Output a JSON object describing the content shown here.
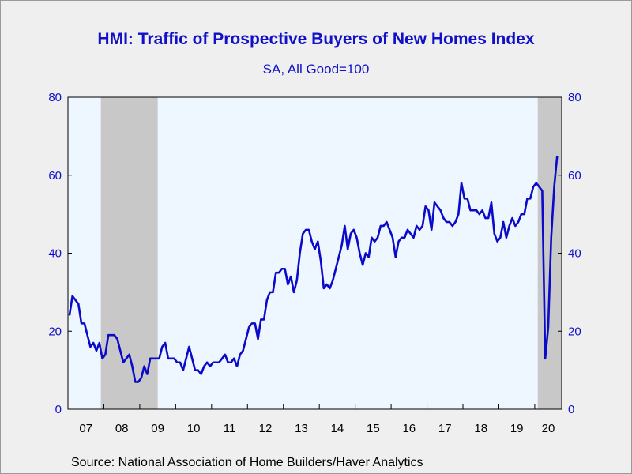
{
  "chart_data": {
    "type": "line",
    "title": "HMI: Traffic of Prospective Buyers of New Homes Index",
    "subtitle": "SA, All Good=100",
    "source": "Source:  National Association of Home Builders/Haver Analytics",
    "ylim": [
      0,
      80
    ],
    "y_ticks": [
      0,
      20,
      40,
      60,
      80
    ],
    "x_start": "2007-01",
    "x_end": "2020-09",
    "x_tick_labels": [
      "07",
      "08",
      "09",
      "10",
      "11",
      "12",
      "13",
      "14",
      "15",
      "16",
      "17",
      "18",
      "19",
      "20"
    ],
    "recessions": [
      [
        "2007-12",
        "2009-06"
      ],
      [
        "2020-02",
        "2020-09"
      ]
    ],
    "colors": {
      "line": "#0a0ac8",
      "plot_bg": "#eef6ff",
      "recession": "#c8c8c8",
      "axis_text": "#1010c8"
    },
    "series": [
      {
        "start": "2007-01",
        "values": [
          24,
          29,
          28,
          27,
          22,
          22,
          19,
          16,
          17,
          15,
          17,
          13,
          14,
          19,
          19,
          19,
          18,
          15,
          12,
          13,
          14,
          11,
          7,
          7,
          8,
          11,
          9,
          13,
          13,
          13,
          13,
          16,
          17,
          13,
          13,
          13,
          12,
          12,
          10,
          13,
          16,
          13,
          10,
          10,
          9,
          11,
          12,
          11,
          12,
          12,
          12,
          13,
          14,
          12,
          12,
          13,
          11,
          14,
          15,
          18,
          21,
          22,
          22,
          18,
          23,
          23,
          28,
          30,
          30,
          35,
          35,
          36,
          36,
          32,
          34,
          30,
          33,
          40,
          45,
          46,
          46,
          43,
          41,
          43,
          38,
          31,
          32,
          31,
          33,
          36,
          39,
          42,
          47,
          41,
          45,
          46,
          44,
          40,
          37,
          40,
          39,
          44,
          43,
          44,
          47,
          47,
          48,
          46,
          44,
          39,
          43,
          44,
          44,
          46,
          45,
          44,
          47,
          46,
          47,
          52,
          51,
          46,
          53,
          52,
          51,
          49,
          48,
          48,
          47,
          48,
          50,
          58,
          54,
          54,
          51,
          51,
          51,
          50,
          51,
          49,
          49,
          53,
          45,
          43,
          44,
          48,
          44,
          47,
          49,
          47,
          48,
          50,
          50,
          54,
          54,
          57,
          58,
          57,
          56,
          13,
          21,
          44,
          57,
          65
        ]
      }
    ]
  }
}
